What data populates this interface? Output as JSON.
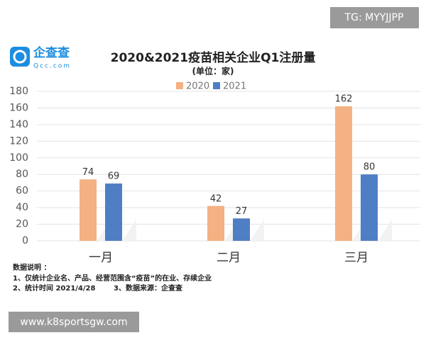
{
  "chart_data": {
    "type": "bar",
    "title": "2020&2021疫苗相关企业Q1注册量",
    "subtitle": "(单位：家)",
    "categories": [
      "一月",
      "二月",
      "三月"
    ],
    "series": [
      {
        "name": "2020",
        "color": "#f4b183",
        "values": [
          74,
          42,
          162
        ]
      },
      {
        "name": "2021",
        "color": "#4f7ec4",
        "values": [
          69,
          27,
          80
        ]
      }
    ],
    "ylim": [
      0,
      180
    ],
    "yticks": [
      0,
      20,
      40,
      60,
      80,
      100,
      120,
      140,
      160,
      180
    ],
    "grid": true,
    "legend": "top",
    "notes_title": "数据说明 ：",
    "notes": [
      "1、仅统计企业名、产品、经营范围含“疫苗”的在业、存续企业",
      "2、统计时间 2021/4/28",
      "3、数据来源：企查查"
    ]
  },
  "logo": {
    "name": "企查查",
    "site": "Qcc.com"
  },
  "watermarks": [
    "TG: MYYJJPP",
    "www.k8sportsgw.com"
  ]
}
